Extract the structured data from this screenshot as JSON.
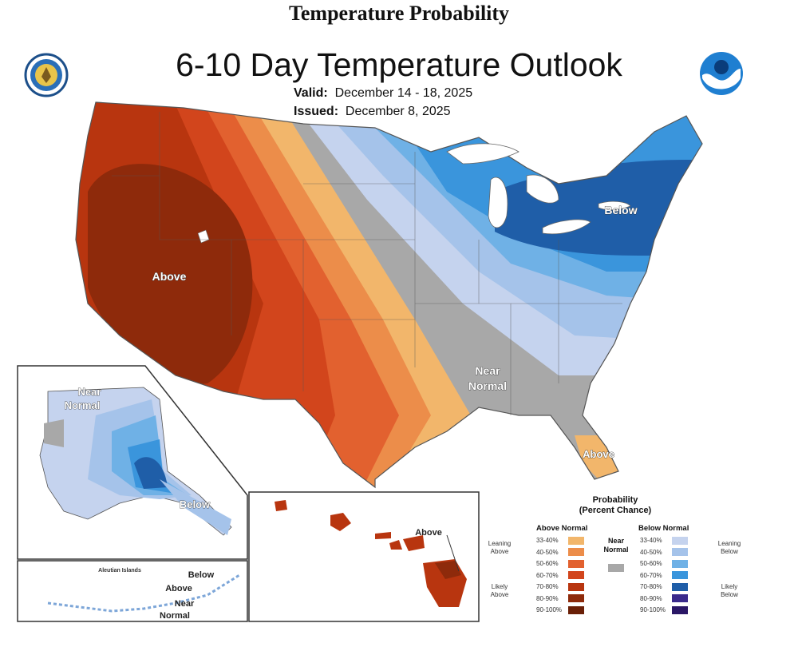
{
  "header": {
    "page_heading": "Temperature Probability",
    "title": "6-10 Day Temperature Outlook",
    "valid_label": "Valid:",
    "valid_value": "December 14 - 18, 2025",
    "issued_label": "Issued:",
    "issued_value": "December 8, 2025"
  },
  "logos": {
    "left": "doc-seal-icon",
    "right": "noaa-logo-icon"
  },
  "map_labels": {
    "above": "Above",
    "below": "Below",
    "near_line1": "Near",
    "near_line2": "Normal",
    "florida_above": "Above"
  },
  "alaska": {
    "near_line1": "Near",
    "near_line2": "Normal",
    "below": "Below"
  },
  "aleutians": {
    "title": "Aleutian Islands",
    "below": "Below",
    "above": "Above",
    "near_line1": "Near",
    "near_line2": "Normal"
  },
  "hawaii": {
    "above": "Above"
  },
  "legend": {
    "title_line1": "Probability",
    "title_line2": "(Percent Chance)",
    "above_heading": "Above Normal",
    "below_heading": "Below Normal",
    "near_line1": "Near",
    "near_line2": "Normal",
    "leaning_above_1": "Leaning",
    "leaning_above_2": "Above",
    "likely_above_1": "Likely",
    "likely_above_2": "Above",
    "leaning_below_1": "Leaning",
    "leaning_below_2": "Below",
    "likely_below_1": "Likely",
    "likely_below_2": "Below",
    "above_rows": [
      {
        "label": "33-40%",
        "color": "#f2b66b"
      },
      {
        "label": "40-50%",
        "color": "#ec8d4a"
      },
      {
        "label": "50-60%",
        "color": "#e2612f"
      },
      {
        "label": "60-70%",
        "color": "#d2451c"
      },
      {
        "label": "70-80%",
        "color": "#b8350f"
      },
      {
        "label": "80-90%",
        "color": "#8e2a0b"
      },
      {
        "label": "90-100%",
        "color": "#6a1f07"
      }
    ],
    "below_rows": [
      {
        "label": "33-40%",
        "color": "#c5d3ee"
      },
      {
        "label": "40-50%",
        "color": "#a5c3ea"
      },
      {
        "label": "50-60%",
        "color": "#6fb1e6"
      },
      {
        "label": "60-70%",
        "color": "#3a95dc"
      },
      {
        "label": "70-80%",
        "color": "#1f5ea8"
      },
      {
        "label": "80-90%",
        "color": "#3a2a8c"
      },
      {
        "label": "90-100%",
        "color": "#2a1766"
      }
    ],
    "near_color": "#a8a8a8"
  }
}
